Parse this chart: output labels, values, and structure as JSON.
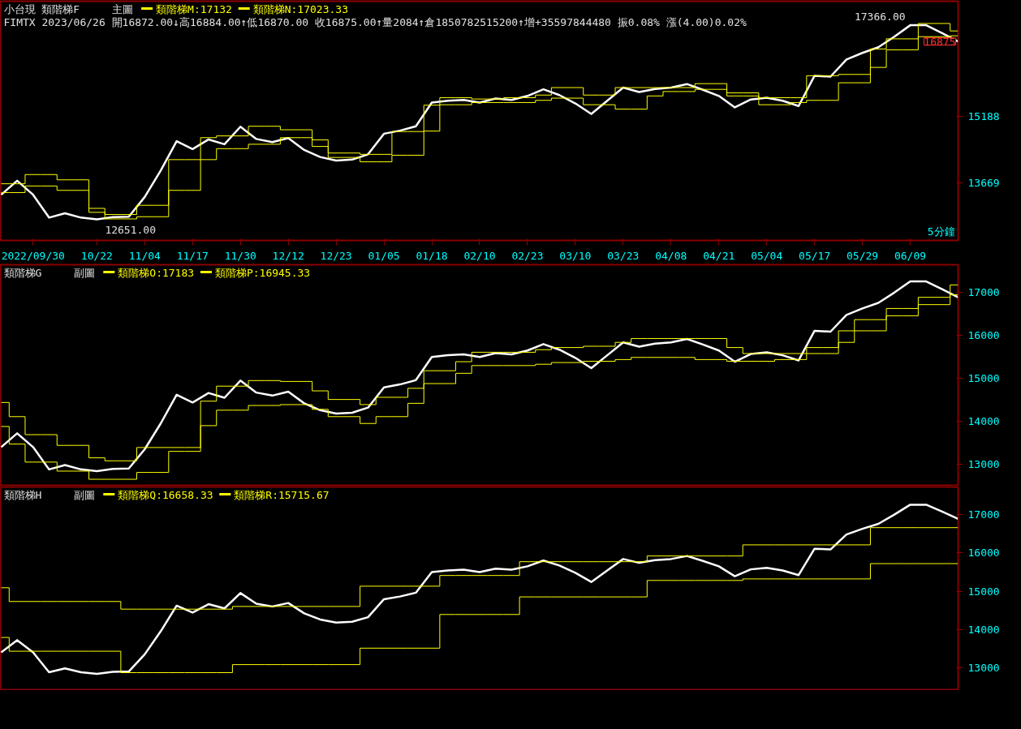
{
  "chart_data": [
    {
      "type": "line",
      "title": "小台現 類階梯F",
      "subtitle": "主圖",
      "legend": "top left",
      "annotations": [
        "FIMTX 2023/06/26 開16872.00↓高16884.00↑低16870.00 收16875.00↑量2084↑倉1850782515200↑增+35597844480 振0.08% 漲(4.00)0.02%",
        "5分鐘",
        "17366.00",
        "12651.00",
        "16875"
      ],
      "ylim": [
        12360,
        17807
      ],
      "yticks": [
        13669,
        15188
      ],
      "categories": [
        null,
        null,
        "2022/09/30",
        null,
        null,
        null,
        "10/22",
        null,
        null,
        "11/04",
        null,
        null,
        "11/17",
        null,
        null,
        "11/30",
        null,
        null,
        "12/12",
        null,
        null,
        "12/23",
        null,
        null,
        "01/05",
        null,
        null,
        "01/18",
        null,
        null,
        "02/10",
        null,
        null,
        "02/23",
        null,
        null,
        "03/10",
        null,
        null,
        "03/23",
        null,
        null,
        "04/08",
        null,
        null,
        "04/21",
        null,
        null,
        "05/04",
        null,
        null,
        "05/17",
        null,
        null,
        "05/29",
        null,
        null,
        "06/09",
        null,
        null,
        null
      ],
      "series": [
        {
          "color": "#ffffff",
          "values": [
            13400,
            13720,
            13400,
            12880,
            12980,
            12880,
            12840,
            12890,
            12900,
            13350,
            13950,
            14620,
            14440,
            14660,
            14550,
            14950,
            14670,
            14600,
            14690,
            14420,
            14260,
            14180,
            14200,
            14320,
            14790,
            14860,
            14960,
            15500,
            15540,
            15560,
            15500,
            15590,
            15560,
            15650,
            15800,
            15670,
            15480,
            15240,
            15540,
            15840,
            15740,
            15810,
            15840,
            15920,
            15790,
            15650,
            15390,
            15570,
            15610,
            15540,
            15420,
            16110,
            16090,
            16480,
            16630,
            16760,
            17000,
            17260,
            17260,
            17080,
            16890
          ]
        },
        {
          "type": "step",
          "name": "類階梯M:17132",
          "color": "#ffff00",
          "values": [
            13650,
            13650,
            13860,
            13860,
            13740,
            13740,
            13090,
            12950,
            12950,
            13160,
            13160,
            14200,
            14200,
            14700,
            14740,
            14740,
            14960,
            14960,
            14880,
            14880,
            14650,
            14350,
            14350,
            14320,
            14320,
            14840,
            14840,
            15440,
            15610,
            15610,
            15580,
            15580,
            15610,
            15610,
            15670,
            15840,
            15840,
            15670,
            15670,
            15840,
            15840,
            15840,
            15840,
            15840,
            15930,
            15930,
            15720,
            15720,
            15610,
            15610,
            15610,
            16110,
            16110,
            16140,
            16140,
            16720,
            16950,
            16950,
            17300,
            17300,
            17130
          ]
        },
        {
          "type": "step",
          "name": "類階梯N:17023.33",
          "color": "#ffff00",
          "values": [
            13450,
            13450,
            13600,
            13600,
            13500,
            13500,
            13000,
            12850,
            12850,
            12900,
            12900,
            13500,
            13500,
            14200,
            14450,
            14450,
            14550,
            14550,
            14700,
            14700,
            14500,
            14250,
            14250,
            14150,
            14150,
            14300,
            14300,
            14850,
            15450,
            15450,
            15500,
            15500,
            15500,
            15500,
            15550,
            15600,
            15600,
            15450,
            15450,
            15350,
            15350,
            15650,
            15750,
            15750,
            15800,
            15800,
            15650,
            15650,
            15450,
            15450,
            15500,
            15550,
            15550,
            15950,
            15950,
            16300,
            16700,
            16700,
            17000,
            17000,
            17020
          ]
        }
      ]
    },
    {
      "type": "line",
      "title": "類階梯G",
      "subtitle": "副圖",
      "legend": "top left",
      "tick_labels": "y",
      "ylim": [
        12509,
        17649
      ],
      "yticks": [
        13000,
        14000,
        15000,
        16000,
        17000
      ],
      "categories": [
        null,
        null,
        null,
        null,
        null,
        null,
        null,
        null,
        null,
        null,
        null,
        null,
        null,
        null,
        null,
        null,
        null,
        null,
        null,
        null,
        null,
        null,
        null,
        null,
        null,
        null,
        null,
        null,
        null,
        null,
        null,
        null,
        null,
        null,
        null,
        null,
        null,
        null,
        null,
        null,
        null,
        null,
        null,
        null,
        null,
        null,
        null,
        null,
        null,
        null,
        null,
        null,
        null,
        null,
        null,
        null,
        null,
        null,
        null,
        null,
        null
      ],
      "series": [
        {
          "color": "#ffffff",
          "values": [
            13400,
            13720,
            13400,
            12880,
            12980,
            12880,
            12840,
            12890,
            12900,
            13350,
            13950,
            14620,
            14440,
            14660,
            14550,
            14950,
            14670,
            14600,
            14690,
            14420,
            14260,
            14180,
            14200,
            14320,
            14790,
            14860,
            14960,
            15500,
            15540,
            15560,
            15500,
            15590,
            15560,
            15650,
            15800,
            15670,
            15480,
            15240,
            15540,
            15840,
            15740,
            15810,
            15840,
            15920,
            15790,
            15650,
            15390,
            15570,
            15610,
            15540,
            15420,
            16110,
            16090,
            16480,
            16630,
            16760,
            17000,
            17260,
            17260,
            17080,
            16890
          ]
        },
        {
          "type": "step",
          "name": "類階梯O:17183",
          "color": "#ffff00",
          "values": [
            14440,
            14110,
            13690,
            13690,
            13440,
            13440,
            13150,
            13080,
            13080,
            13390,
            13390,
            13390,
            13390,
            14470,
            14820,
            14820,
            14950,
            14950,
            14930,
            14930,
            14710,
            14510,
            14510,
            14390,
            14560,
            14560,
            14770,
            15180,
            15180,
            15390,
            15610,
            15610,
            15610,
            15610,
            15670,
            15720,
            15720,
            15750,
            15750,
            15840,
            15930,
            15930,
            15930,
            15930,
            15930,
            15930,
            15720,
            15580,
            15580,
            15580,
            15580,
            15720,
            15720,
            16110,
            16370,
            16370,
            16630,
            16630,
            16890,
            16890,
            17180
          ]
        },
        {
          "type": "step",
          "name": "類階梯P:16945.33",
          "color": "#ffff00",
          "values": [
            13880,
            13470,
            13050,
            13050,
            12840,
            12840,
            12650,
            12650,
            12650,
            12810,
            12810,
            13300,
            13300,
            13900,
            14260,
            14260,
            14370,
            14370,
            14390,
            14390,
            14280,
            14110,
            14110,
            13950,
            14110,
            14110,
            14420,
            14880,
            14880,
            15120,
            15300,
            15300,
            15300,
            15300,
            15330,
            15370,
            15370,
            15400,
            15400,
            15440,
            15490,
            15490,
            15490,
            15490,
            15440,
            15440,
            15400,
            15400,
            15400,
            15440,
            15440,
            15580,
            15580,
            15840,
            16110,
            16110,
            16460,
            16460,
            16720,
            16720,
            16950
          ]
        }
      ]
    },
    {
      "type": "line",
      "title": "類階梯H",
      "subtitle": "副圖",
      "legend": "top left",
      "tick_labels": "y",
      "ylim": [
        12425,
        17724
      ],
      "yticks": [
        13000,
        14000,
        15000,
        16000,
        17000
      ],
      "categories": [
        null,
        null,
        null,
        null,
        null,
        null,
        null,
        null,
        null,
        null,
        null,
        null,
        null,
        null,
        null,
        null,
        null,
        null,
        null,
        null,
        null,
        null,
        null,
        null,
        null,
        null,
        null,
        null,
        null,
        null,
        null,
        null,
        null,
        null,
        null,
        null,
        null,
        null,
        null,
        null,
        null,
        null,
        null,
        null,
        null,
        null,
        null,
        null,
        null,
        null,
        null,
        null,
        null,
        null,
        null,
        null,
        null,
        null,
        null,
        null,
        null
      ],
      "series": [
        {
          "color": "#ffffff",
          "values": [
            13400,
            13720,
            13400,
            12880,
            12980,
            12880,
            12840,
            12890,
            12900,
            13350,
            13950,
            14620,
            14440,
            14660,
            14550,
            14950,
            14670,
            14600,
            14690,
            14420,
            14260,
            14180,
            14200,
            14320,
            14790,
            14860,
            14960,
            15500,
            15540,
            15560,
            15500,
            15590,
            15560,
            15650,
            15800,
            15670,
            15480,
            15240,
            15540,
            15840,
            15740,
            15810,
            15840,
            15920,
            15790,
            15650,
            15390,
            15570,
            15610,
            15540,
            15420,
            16110,
            16090,
            16480,
            16630,
            16760,
            17000,
            17260,
            17260,
            17080,
            16890
          ]
        },
        {
          "type": "step",
          "name": "類階梯Q:16658.33",
          "color": "#ffff00",
          "values": [
            15090,
            14730,
            14730,
            14730,
            14730,
            14730,
            14730,
            14730,
            14530,
            14530,
            14530,
            14530,
            14530,
            14530,
            14530,
            14600,
            14600,
            14600,
            14600,
            14600,
            14600,
            14600,
            14600,
            15130,
            15130,
            15130,
            15130,
            15130,
            15410,
            15410,
            15410,
            15410,
            15410,
            15770,
            15770,
            15770,
            15770,
            15770,
            15770,
            15770,
            15770,
            15920,
            15920,
            15920,
            15920,
            15920,
            15920,
            16210,
            16210,
            16210,
            16210,
            16210,
            16210,
            16210,
            16210,
            16660,
            16660,
            16660,
            16660,
            16660,
            16660
          ]
        },
        {
          "type": "step",
          "name": "類階梯R:15715.67",
          "color": "#ffff00",
          "values": [
            13790,
            13430,
            13430,
            13430,
            13430,
            13430,
            13430,
            13430,
            12870,
            12870,
            12870,
            12870,
            12870,
            12870,
            12870,
            13080,
            13080,
            13080,
            13080,
            13080,
            13080,
            13080,
            13080,
            13510,
            13510,
            13510,
            13510,
            13510,
            14390,
            14390,
            14390,
            14390,
            14390,
            14850,
            14850,
            14850,
            14850,
            14850,
            14850,
            14850,
            14850,
            15280,
            15280,
            15280,
            15280,
            15280,
            15280,
            15320,
            15320,
            15320,
            15320,
            15320,
            15320,
            15320,
            15320,
            15720,
            15720,
            15720,
            15720,
            15720,
            15720
          ]
        }
      ]
    }
  ]
}
